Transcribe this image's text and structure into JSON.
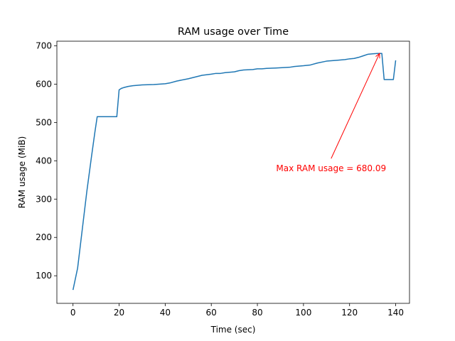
{
  "chart_data": {
    "type": "line",
    "title": "RAM usage over Time",
    "xlabel": "Time (sec)",
    "ylabel": "RAM usage (MiB)",
    "xlim": [
      -7,
      146
    ],
    "ylim": [
      28,
      712
    ],
    "xticks": [
      0,
      20,
      40,
      60,
      80,
      100,
      120,
      140
    ],
    "yticks": [
      100,
      200,
      300,
      400,
      500,
      600,
      700
    ],
    "grid": false,
    "line_color": "#1f77b4",
    "annotation_color": "#ff0000",
    "series": [
      {
        "x": [
          0,
          2,
          4,
          6,
          8,
          9.5,
          10.5,
          12,
          15,
          19,
          20,
          21,
          22,
          24,
          26,
          30,
          35,
          40,
          42,
          45,
          50,
          54,
          56,
          60,
          62,
          64,
          66,
          70,
          72,
          74,
          78,
          80,
          82,
          84,
          88,
          94,
          96,
          100,
          103,
          106,
          110,
          114,
          118,
          120,
          122,
          124,
          126,
          128,
          130,
          132,
          133,
          134,
          135,
          136,
          137,
          138,
          139,
          140
        ],
        "y": [
          63,
          120,
          220,
          320,
          410,
          475,
          515,
          515,
          515,
          515,
          585,
          589,
          591,
          594,
          596,
          598,
          599,
          601,
          603,
          608,
          614,
          620,
          623,
          626,
          628,
          628,
          630,
          632,
          635,
          637,
          638,
          640,
          640,
          641,
          642,
          644,
          646,
          648,
          650,
          655,
          660,
          662,
          664,
          666,
          667,
          670,
          674,
          678,
          679,
          680,
          680.09,
          680,
          612,
          612,
          612,
          612,
          612,
          662
        ]
      }
    ],
    "annotation": {
      "text": "Max RAM usage = 680.09",
      "point": [
        133,
        680.09
      ],
      "text_anchor": [
        112,
        380
      ]
    }
  }
}
